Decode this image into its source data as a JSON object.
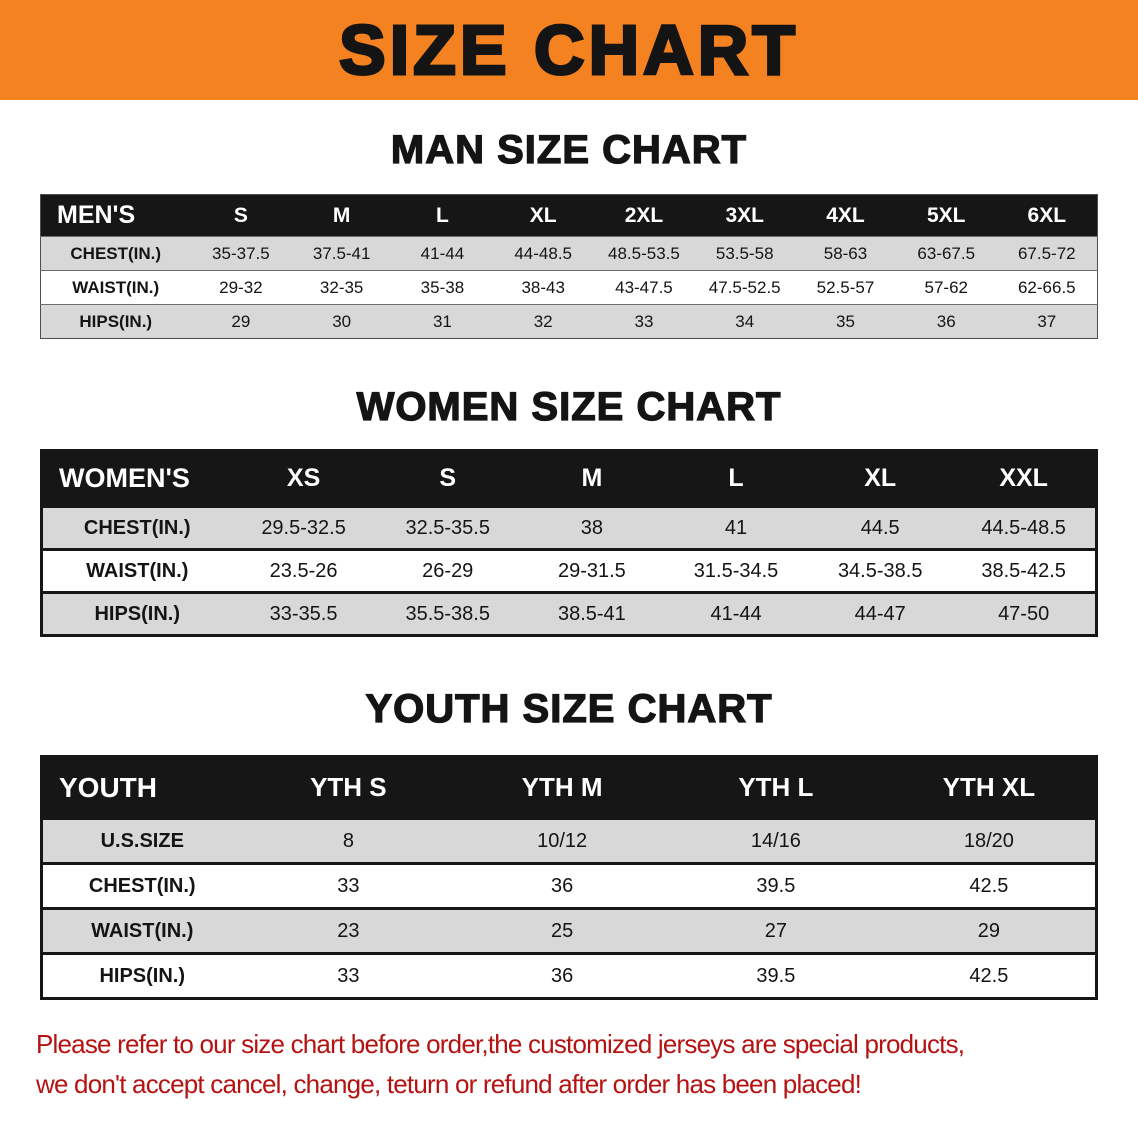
{
  "banner": {
    "title": "SIZE CHART"
  },
  "colors": {
    "banner_bg": "#f58220",
    "header_bg": "#161616",
    "row_gray": "#d8d8d8",
    "row_white": "#ffffff",
    "note_red": "#b51212",
    "ink": "#141414"
  },
  "sections": {
    "men": {
      "heading": "MAN SIZE CHART"
    },
    "women": {
      "heading": "WOMEN SIZE CHART"
    },
    "youth": {
      "heading": "YOUTH SIZE CHART"
    }
  },
  "tables": {
    "men": {
      "header": [
        "MEN'S",
        "S",
        "M",
        "L",
        "XL",
        "2XL",
        "3XL",
        "4XL",
        "5XL",
        "6XL"
      ],
      "rows": [
        {
          "label": "CHEST(IN.)",
          "values": [
            "35-37.5",
            "37.5-41",
            "41-44",
            "44-48.5",
            "48.5-53.5",
            "53.5-58",
            "58-63",
            "63-67.5",
            "67.5-72"
          ]
        },
        {
          "label": "WAIST(IN.)",
          "values": [
            "29-32",
            "32-35",
            "35-38",
            "38-43",
            "43-47.5",
            "47.5-52.5",
            "52.5-57",
            "57-62",
            "62-66.5"
          ]
        },
        {
          "label": "HIPS(IN.)",
          "values": [
            "29",
            "30",
            "31",
            "32",
            "33",
            "34",
            "35",
            "36",
            "37"
          ]
        }
      ]
    },
    "women": {
      "header": [
        "WOMEN'S",
        "XS",
        "S",
        "M",
        "L",
        "XL",
        "XXL"
      ],
      "rows": [
        {
          "label": "CHEST(IN.)",
          "values": [
            "29.5-32.5",
            "32.5-35.5",
            "38",
            "41",
            "44.5",
            "44.5-48.5"
          ]
        },
        {
          "label": "WAIST(IN.)",
          "values": [
            "23.5-26",
            "26-29",
            "29-31.5",
            "31.5-34.5",
            "34.5-38.5",
            "38.5-42.5"
          ]
        },
        {
          "label": "HIPS(IN.)",
          "values": [
            "33-35.5",
            "35.5-38.5",
            "38.5-41",
            "41-44",
            "44-47",
            "47-50"
          ]
        }
      ]
    },
    "youth": {
      "header": [
        "YOUTH",
        "YTH S",
        "YTH M",
        "YTH L",
        "YTH XL"
      ],
      "rows": [
        {
          "label": "U.S.SIZE",
          "values": [
            "8",
            "10/12",
            "14/16",
            "18/20"
          ]
        },
        {
          "label": "CHEST(IN.)",
          "values": [
            "33",
            "36",
            "39.5",
            "42.5"
          ]
        },
        {
          "label": "WAIST(IN.)",
          "values": [
            "23",
            "25",
            "27",
            "29"
          ]
        },
        {
          "label": "HIPS(IN.)",
          "values": [
            "33",
            "36",
            "39.5",
            "42.5"
          ]
        }
      ]
    }
  },
  "footer": {
    "line1": "Please refer to our size chart before order,the customized jerseys are special products,",
    "line2": "we don't accept cancel, change, teturn or refund after order has been placed!"
  }
}
